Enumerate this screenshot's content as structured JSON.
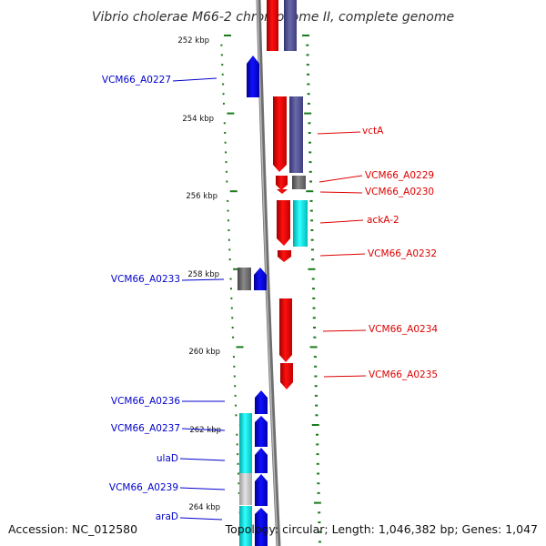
{
  "title": "Vibrio cholerae M66-2 chromosome II, complete genome",
  "footer": {
    "accession": "Accession: NC_012580",
    "topology": "Topology: circular; Length: 1,046,382 bp; Genes: 1,047"
  },
  "colors": {
    "forward": "#ff0000",
    "reverse": "#0000ff",
    "slate": "#555599",
    "gray": "#777777",
    "cyan": "#00dddd",
    "light_gray": "#c8c8c8",
    "backbone": "#808080",
    "tick": "#1a7a1a",
    "label_blue": "#0000cc",
    "label_red": "#dd0000"
  },
  "ruler_labels": [
    {
      "text": "252 kbp",
      "kbp": 252
    },
    {
      "text": "254 kbp",
      "kbp": 254
    },
    {
      "text": "256 kbp",
      "kbp": 256
    },
    {
      "text": "258 kbp",
      "kbp": 258
    },
    {
      "text": "260 kbp",
      "kbp": 260
    },
    {
      "text": "262 kbp",
      "kbp": 262
    },
    {
      "text": "264 kbp",
      "kbp": 264
    }
  ],
  "gene_labels": {
    "left": [
      "VCM66_A0227",
      "VCM66_A0233",
      "VCM66_A0236",
      "VCM66_A0237",
      "ulaD",
      "VCM66_A0239",
      "araD"
    ],
    "right": [
      "vctA",
      "VCM66_A0229",
      "VCM66_A0230",
      "ackA-2",
      "VCM66_A0232",
      "VCM66_A0234",
      "VCM66_A0235"
    ]
  }
}
